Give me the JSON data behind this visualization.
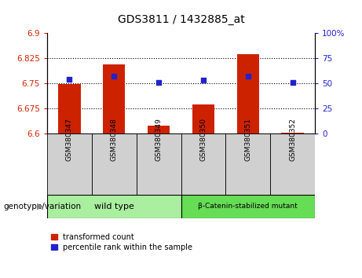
{
  "title": "GDS3811 / 1432885_at",
  "categories": [
    "GSM380347",
    "GSM380348",
    "GSM380349",
    "GSM380350",
    "GSM380351",
    "GSM380352"
  ],
  "red_values": [
    6.748,
    6.808,
    6.623,
    6.687,
    6.838,
    6.603
  ],
  "blue_values": [
    54,
    57,
    51,
    53,
    57,
    51
  ],
  "ylim_left": [
    6.6,
    6.9
  ],
  "ylim_right": [
    0,
    100
  ],
  "yticks_left": [
    6.6,
    6.675,
    6.75,
    6.825,
    6.9
  ],
  "yticks_right": [
    0,
    25,
    50,
    75,
    100
  ],
  "ytick_labels_left": [
    "6.6",
    "6.675",
    "6.75",
    "6.825",
    "6.9"
  ],
  "ytick_labels_right": [
    "0",
    "25",
    "50",
    "75",
    "100%"
  ],
  "hlines": [
    6.675,
    6.75,
    6.825
  ],
  "red_color": "#cc2200",
  "blue_color": "#2222cc",
  "bar_width": 0.5,
  "group1_label": "wild type",
  "group2_label": "β-Catenin-stabilized mutant",
  "group1_color": "#aaeea0",
  "group2_color": "#66dd55",
  "group1_indices": [
    0,
    1,
    2
  ],
  "group2_indices": [
    3,
    4,
    5
  ],
  "legend_red": "transformed count",
  "legend_blue": "percentile rank within the sample",
  "genotype_label": "genotype/variation",
  "tick_bg_color": "#d0d0d0",
  "plot_bg_color": "#ffffff"
}
